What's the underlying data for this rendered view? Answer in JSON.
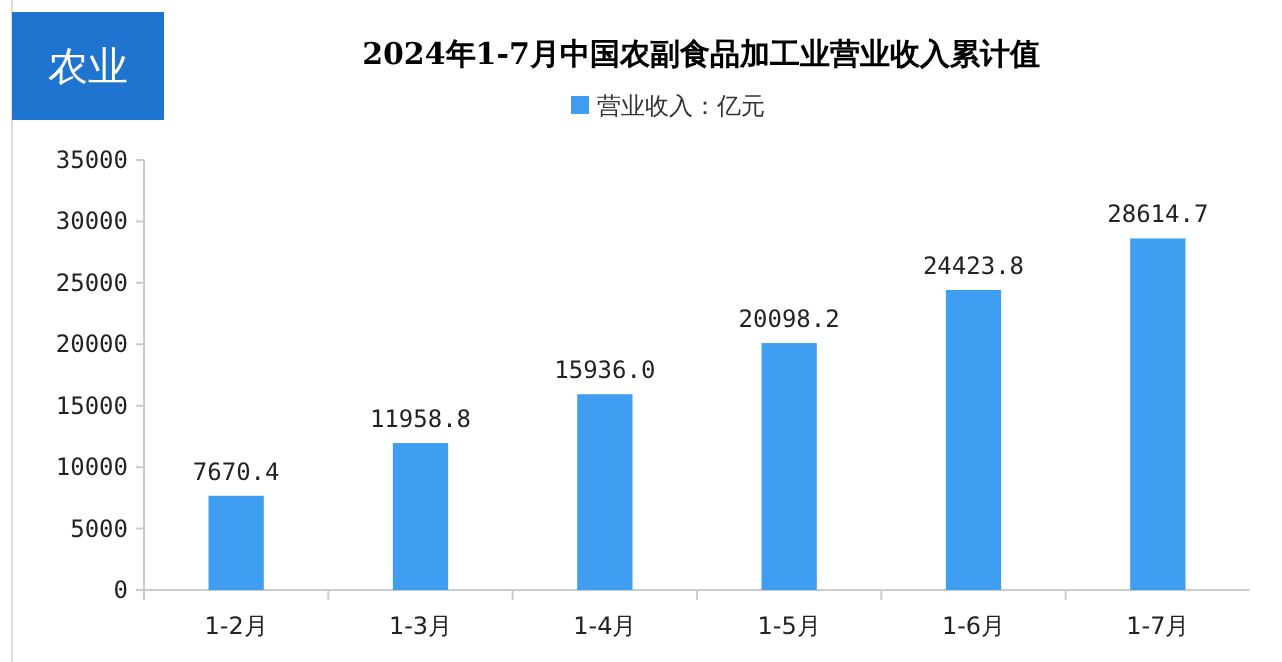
{
  "chart_data": {
    "type": "bar",
    "title": "2024年1-7月中国农副食品加工业营业收入累计值",
    "annotations": [
      "农业"
    ],
    "categories": [
      "1-2月",
      "1-3月",
      "1-4月",
      "1-5月",
      "1-6月",
      "1-7月"
    ],
    "series": [
      {
        "name": "营业收入：亿元",
        "color": "#3f9ef2",
        "values": [
          7670.4,
          11958.8,
          15936.0,
          20098.2,
          24423.8,
          28614.7
        ],
        "value_labels": [
          "7670.4",
          "11958.8",
          "15936.0",
          "20098.2",
          "24423.8",
          "28614.7"
        ]
      }
    ],
    "ylim": [
      0,
      35000
    ],
    "yticks": [
      0,
      5000,
      10000,
      15000,
      20000,
      25000,
      30000,
      35000
    ],
    "grid": false,
    "legend": "top"
  }
}
